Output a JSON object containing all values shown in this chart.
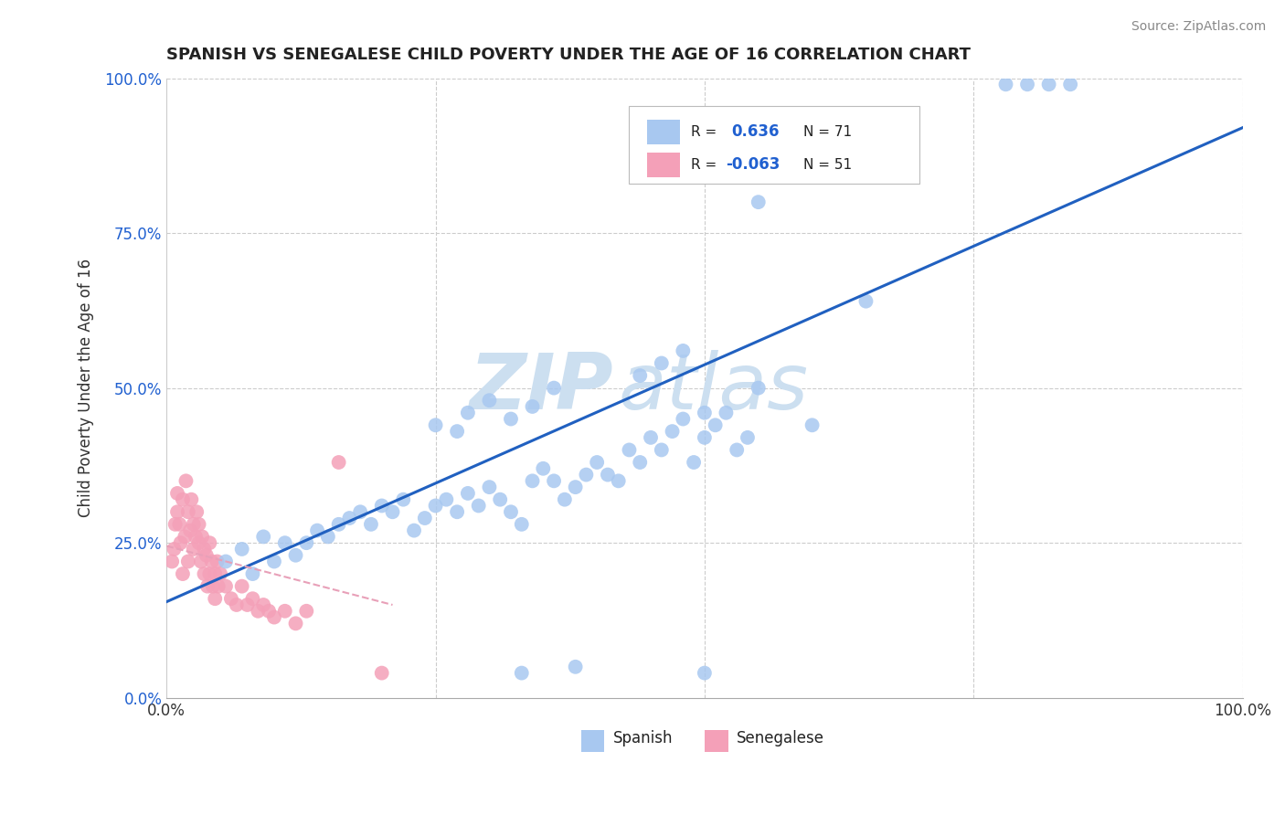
{
  "title": "SPANISH VS SENEGALESE CHILD POVERTY UNDER THE AGE OF 16 CORRELATION CHART",
  "source": "Source: ZipAtlas.com",
  "ylabel": "Child Poverty Under the Age of 16",
  "xlim": [
    0,
    1
  ],
  "ylim": [
    0,
    1
  ],
  "xtick_labels": [
    "0.0%",
    "100.0%"
  ],
  "ytick_labels": [
    "0.0%",
    "25.0%",
    "50.0%",
    "75.0%",
    "100.0%"
  ],
  "ytick_positions": [
    0,
    0.25,
    0.5,
    0.75,
    1.0
  ],
  "spanish_R": 0.636,
  "spanish_N": 71,
  "senegalese_R": -0.063,
  "senegalese_N": 51,
  "blue_color": "#a8c8f0",
  "pink_color": "#f4a0b8",
  "blue_line_color": "#2060c0",
  "pink_line_color": "#e8a0b8",
  "grid_color": "#cccccc",
  "watermark_color": "#ccdff0",
  "background_color": "#ffffff",
  "blue_R_color": "#2060d0",
  "black_text": "#222222",
  "spanish_x": [
    0.055,
    0.07,
    0.08,
    0.09,
    0.1,
    0.11,
    0.12,
    0.13,
    0.14,
    0.15,
    0.16,
    0.17,
    0.18,
    0.19,
    0.2,
    0.21,
    0.22,
    0.23,
    0.24,
    0.25,
    0.26,
    0.27,
    0.28,
    0.29,
    0.3,
    0.31,
    0.32,
    0.33,
    0.34,
    0.35,
    0.36,
    0.37,
    0.38,
    0.39,
    0.4,
    0.41,
    0.42,
    0.43,
    0.44,
    0.45,
    0.46,
    0.47,
    0.48,
    0.49,
    0.5,
    0.51,
    0.52,
    0.53,
    0.54,
    0.55,
    0.28,
    0.3,
    0.32,
    0.34,
    0.36,
    0.25,
    0.27,
    0.44,
    0.46,
    0.48,
    0.78,
    0.8,
    0.82,
    0.84,
    0.55,
    0.5,
    0.6,
    0.65,
    0.33,
    0.38,
    0.5
  ],
  "spanish_y": [
    0.22,
    0.24,
    0.2,
    0.26,
    0.22,
    0.25,
    0.23,
    0.25,
    0.27,
    0.26,
    0.28,
    0.29,
    0.3,
    0.28,
    0.31,
    0.3,
    0.32,
    0.27,
    0.29,
    0.31,
    0.32,
    0.3,
    0.33,
    0.31,
    0.34,
    0.32,
    0.3,
    0.28,
    0.35,
    0.37,
    0.35,
    0.32,
    0.34,
    0.36,
    0.38,
    0.36,
    0.35,
    0.4,
    0.38,
    0.42,
    0.4,
    0.43,
    0.45,
    0.38,
    0.42,
    0.44,
    0.46,
    0.4,
    0.42,
    0.5,
    0.46,
    0.48,
    0.45,
    0.47,
    0.5,
    0.44,
    0.43,
    0.52,
    0.54,
    0.56,
    0.99,
    0.99,
    0.99,
    0.99,
    0.8,
    0.46,
    0.44,
    0.64,
    0.04,
    0.05,
    0.04
  ],
  "senegalese_x": [
    0.005,
    0.007,
    0.008,
    0.01,
    0.01,
    0.012,
    0.013,
    0.015,
    0.015,
    0.017,
    0.018,
    0.02,
    0.02,
    0.022,
    0.023,
    0.025,
    0.025,
    0.027,
    0.028,
    0.03,
    0.03,
    0.032,
    0.033,
    0.035,
    0.035,
    0.037,
    0.038,
    0.04,
    0.04,
    0.042,
    0.043,
    0.045,
    0.045,
    0.047,
    0.048,
    0.05,
    0.055,
    0.06,
    0.065,
    0.07,
    0.075,
    0.08,
    0.085,
    0.09,
    0.095,
    0.1,
    0.11,
    0.12,
    0.13,
    0.16,
    0.2
  ],
  "senegalese_y": [
    0.22,
    0.24,
    0.28,
    0.3,
    0.33,
    0.28,
    0.25,
    0.32,
    0.2,
    0.26,
    0.35,
    0.3,
    0.22,
    0.27,
    0.32,
    0.24,
    0.28,
    0.26,
    0.3,
    0.25,
    0.28,
    0.22,
    0.26,
    0.24,
    0.2,
    0.23,
    0.18,
    0.25,
    0.2,
    0.22,
    0.18,
    0.2,
    0.16,
    0.22,
    0.18,
    0.2,
    0.18,
    0.16,
    0.15,
    0.18,
    0.15,
    0.16,
    0.14,
    0.15,
    0.14,
    0.13,
    0.14,
    0.12,
    0.14,
    0.38,
    0.04
  ],
  "sp_line_x0": 0.0,
  "sp_line_y0": 0.155,
  "sp_line_x1": 1.0,
  "sp_line_y1": 0.92,
  "sn_line_x0": 0.0,
  "sn_line_y0": 0.245,
  "sn_line_x1": 0.21,
  "sn_line_y1": 0.15
}
